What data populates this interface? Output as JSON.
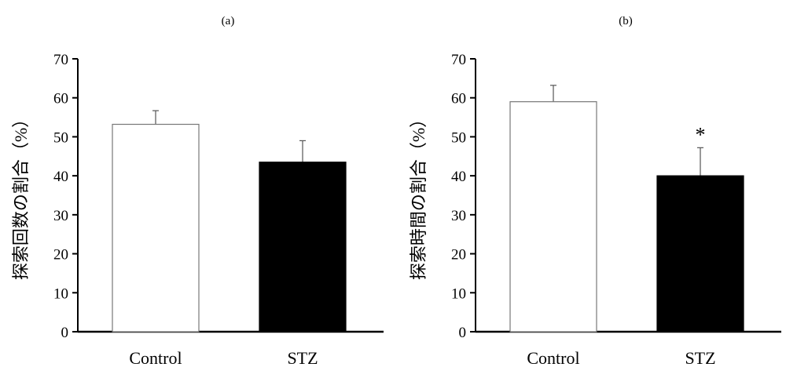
{
  "chart_data": [
    {
      "type": "bar",
      "panel_label": "(a)",
      "ylabel": "探索回数の割合（%）",
      "categories": [
        "Control",
        "STZ"
      ],
      "values": [
        53.2,
        43.5
      ],
      "errors": [
        3.5,
        5.5
      ],
      "annotations": [
        "",
        ""
      ],
      "ylim": [
        0,
        70
      ],
      "yticks": [
        "0",
        "10",
        "20",
        "30",
        "40",
        "50",
        "60",
        "70"
      ],
      "bar_colors": [
        "#ffffff",
        "#000000"
      ],
      "grid": false,
      "legend": "none"
    },
    {
      "type": "bar",
      "panel_label": "(b)",
      "ylabel": "探索時間の割合（%）",
      "categories": [
        "Control",
        "STZ"
      ],
      "values": [
        59.0,
        40.0
      ],
      "errors": [
        4.2,
        7.2
      ],
      "annotations": [
        "",
        "*"
      ],
      "ylim": [
        0,
        70
      ],
      "yticks": [
        "0",
        "10",
        "20",
        "30",
        "40",
        "50",
        "60",
        "70"
      ],
      "bar_colors": [
        "#ffffff",
        "#000000"
      ],
      "grid": false,
      "legend": "none"
    }
  ]
}
